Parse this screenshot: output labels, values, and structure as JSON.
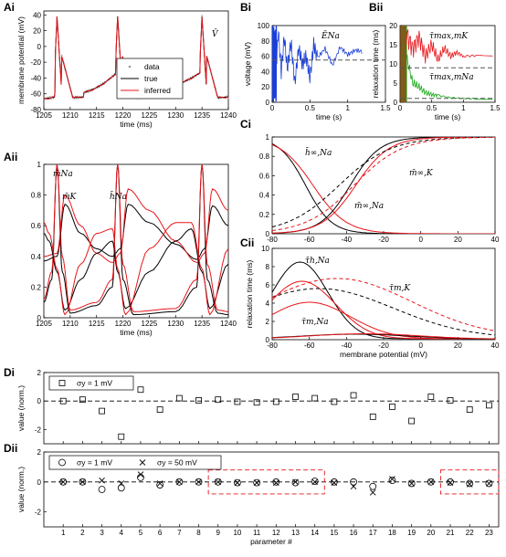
{
  "colors": {
    "true": "#000000",
    "inferred": "#e8141a",
    "data": "#9a9a9a",
    "blue": "#1a3fd8",
    "green": "#18a818"
  },
  "panels": {
    "Ai": {
      "label": "Ai",
      "annotation": "V̄"
    },
    "Aii": {
      "label": "Aii",
      "ann_mNa": "m̄Na",
      "ann_mK": "m̄K",
      "ann_hNa": "h̄Na"
    },
    "Bi": {
      "label": "Bi",
      "annotation": "ĒNa"
    },
    "Bii": {
      "label": "Bii",
      "ann_top": "τ̄max,mK",
      "ann_bot": "τ̄max,mNa"
    },
    "Ci": {
      "label": "Ci",
      "ann_h": "h̄∞,Na",
      "ann_mK": "m̄∞,K",
      "ann_mNa": "m̄∞,Na"
    },
    "Cii": {
      "label": "Cii",
      "ann_h": "τ̄h,Na",
      "ann_mK": "τ̄m,K",
      "ann_mNa": "τ̄m,Na"
    },
    "Di": {
      "label": "Di"
    },
    "Dii": {
      "label": "Dii"
    }
  },
  "chart_data": [
    {
      "id": "Ai",
      "type": "line",
      "xlabel": "time (ms)",
      "ylabel": "membrane potential (mV)",
      "xlim": [
        1205,
        1240
      ],
      "ylim": [
        -80,
        45
      ],
      "xticks": [
        1205,
        1210,
        1215,
        1220,
        1225,
        1230,
        1235,
        1240
      ],
      "yticks": [
        40,
        20,
        0,
        -20,
        -40,
        -60,
        -80
      ],
      "legend": {
        "position": "top-right",
        "entries": [
          "data",
          "true",
          "inferred"
        ]
      },
      "spike_times": [
        1207.5,
        1219.0,
        1235.0
      ],
      "spike_peak": 38,
      "rest": -65,
      "series": [
        {
          "name": "data",
          "style": "dots",
          "x": [
            1205,
            1206,
            1207,
            1207.5,
            1208,
            1209,
            1210,
            1212,
            1214,
            1216,
            1218,
            1219,
            1220,
            1222,
            1225,
            1228,
            1231,
            1233,
            1235,
            1236,
            1238,
            1240
          ],
          "values": [
            -22,
            -15,
            -5,
            38,
            -10,
            -55,
            -68,
            -60,
            -50,
            -38,
            -22,
            38,
            -60,
            -70,
            -64,
            -55,
            -42,
            -25,
            38,
            -55,
            -68,
            -66
          ]
        },
        {
          "name": "true",
          "style": "line",
          "x": [
            1205,
            1206,
            1207,
            1207.5,
            1208,
            1209,
            1210,
            1212,
            1214,
            1216,
            1218,
            1219,
            1220,
            1222,
            1225,
            1228,
            1231,
            1233,
            1235,
            1236,
            1238,
            1240
          ],
          "values": [
            -22,
            -15,
            -5,
            38,
            -10,
            -55,
            -68,
            -60,
            -50,
            -38,
            -22,
            38,
            -60,
            -70,
            -64,
            -55,
            -42,
            -25,
            38,
            -55,
            -68,
            -66
          ]
        },
        {
          "name": "inferred",
          "style": "line",
          "x": [
            1205,
            1206,
            1207,
            1207.5,
            1208,
            1209,
            1210,
            1212,
            1214,
            1216,
            1218,
            1219,
            1220,
            1222,
            1225,
            1228,
            1231,
            1233,
            1235,
            1236,
            1238,
            1240
          ],
          "values": [
            -21,
            -14,
            -4,
            37,
            -11,
            -54,
            -67,
            -59,
            -49,
            -37,
            -21,
            37,
            -59,
            -69,
            -63,
            -54,
            -41,
            -24,
            37,
            -54,
            -67,
            -65
          ]
        }
      ]
    },
    {
      "id": "Aii",
      "type": "line",
      "xlabel": "time (ms)",
      "ylabel": "",
      "xlim": [
        1205,
        1240
      ],
      "ylim": [
        0,
        1
      ],
      "xticks": [
        1205,
        1210,
        1215,
        1220,
        1225,
        1230,
        1235,
        1240
      ],
      "yticks": [
        1,
        0.8,
        0.6,
        0.4,
        0.2,
        0
      ],
      "series": [
        {
          "name": "m_Na true",
          "color": "true",
          "x": [
            1205,
            1206.5,
            1207.5,
            1208.5,
            1210,
            1215,
            1218,
            1219,
            1220,
            1222,
            1230,
            1234,
            1235,
            1236,
            1238,
            1240
          ],
          "values": [
            0.1,
            0.25,
            1.0,
            0.3,
            0.03,
            0.08,
            0.2,
            1.0,
            0.25,
            0.02,
            0.04,
            0.2,
            1.0,
            0.25,
            0.03,
            0.02
          ]
        },
        {
          "name": "m_Na inferred",
          "color": "inferred",
          "x": [
            1205,
            1206.5,
            1207.5,
            1208.5,
            1210,
            1215,
            1218,
            1219,
            1220,
            1222,
            1230,
            1234,
            1235,
            1236,
            1238,
            1240
          ],
          "values": [
            0.12,
            0.3,
            1.0,
            0.4,
            0.05,
            0.1,
            0.25,
            1.0,
            0.35,
            0.04,
            0.06,
            0.25,
            1.0,
            0.35,
            0.05,
            0.04
          ]
        },
        {
          "name": "m_K true",
          "color": "true",
          "x": [
            1205,
            1207.5,
            1209,
            1212,
            1215,
            1218,
            1219.5,
            1221,
            1225,
            1230,
            1234,
            1235.5,
            1237,
            1240
          ],
          "values": [
            0.37,
            0.4,
            0.74,
            0.55,
            0.45,
            0.4,
            0.45,
            0.74,
            0.62,
            0.48,
            0.38,
            0.45,
            0.73,
            0.6
          ]
        },
        {
          "name": "m_K inferred",
          "color": "inferred",
          "x": [
            1205,
            1207.5,
            1209,
            1212,
            1215,
            1218,
            1219.5,
            1221,
            1225,
            1230,
            1234,
            1235.5,
            1237,
            1240
          ],
          "values": [
            0.4,
            0.42,
            0.8,
            0.6,
            0.42,
            0.36,
            0.42,
            0.84,
            0.7,
            0.5,
            0.36,
            0.42,
            0.84,
            0.7
          ]
        },
        {
          "name": "h_Na true",
          "color": "true",
          "x": [
            1205,
            1206,
            1207.5,
            1209,
            1212,
            1215,
            1218,
            1219,
            1220.5,
            1225,
            1230,
            1233,
            1235,
            1236.5,
            1240
          ],
          "values": [
            0.55,
            0.5,
            0.3,
            0.05,
            0.25,
            0.42,
            0.5,
            0.3,
            0.06,
            0.3,
            0.5,
            0.58,
            0.3,
            0.06,
            0.35
          ]
        },
        {
          "name": "h_Na inferred",
          "color": "inferred",
          "x": [
            1205,
            1206,
            1207.5,
            1209,
            1212,
            1215,
            1218,
            1219,
            1220.5,
            1225,
            1230,
            1233,
            1235,
            1236.5,
            1240
          ],
          "values": [
            0.62,
            0.55,
            0.32,
            0.02,
            0.35,
            0.55,
            0.58,
            0.32,
            0.02,
            0.45,
            0.62,
            0.62,
            0.32,
            0.02,
            0.45
          ]
        }
      ]
    },
    {
      "id": "Bi",
      "type": "line",
      "xlabel": "time (s)",
      "ylabel": "voltage (mV)",
      "xlim": [
        0,
        1.5
      ],
      "ylim": [
        0,
        100
      ],
      "xticks": [
        0,
        0.5,
        1,
        1.5
      ],
      "yticks": [
        100,
        80,
        60,
        40,
        20,
        0
      ],
      "true_value": 55,
      "series": [
        {
          "name": "estimate",
          "color": "blue",
          "x": [
            0.0,
            0.05,
            0.08,
            0.12,
            0.16,
            0.2,
            0.25,
            0.3,
            0.35,
            0.4,
            0.45,
            0.5,
            0.55,
            0.6,
            0.7,
            0.8,
            0.9,
            1.0,
            1.1,
            1.2
          ],
          "values": [
            100,
            30,
            95,
            40,
            85,
            45,
            78,
            25,
            70,
            50,
            60,
            32,
            75,
            58,
            70,
            48,
            72,
            62,
            68,
            66
          ]
        }
      ]
    },
    {
      "id": "Bii",
      "type": "line",
      "xlabel": "time (s)",
      "ylabel": "relaxation time (ms)",
      "xlim": [
        0,
        1.5
      ],
      "ylim": [
        0,
        20
      ],
      "xticks": [
        0,
        0.5,
        1,
        1.5
      ],
      "yticks": [
        20,
        15,
        10,
        5,
        0
      ],
      "true_values": [
        9,
        1
      ],
      "series": [
        {
          "name": "τmax,mK estimate",
          "color": "inferred",
          "x": [
            0.1,
            0.2,
            0.3,
            0.4,
            0.5,
            0.6,
            0.7,
            0.8,
            0.9,
            1.0,
            1.2,
            1.5
          ],
          "values": [
            18,
            14,
            17,
            12,
            15,
            11,
            14,
            12,
            13,
            12,
            12.2,
            12.2
          ]
        },
        {
          "name": "τmax,mNa estimate",
          "color": "green",
          "x": [
            0.1,
            0.2,
            0.3,
            0.4,
            0.5,
            0.6,
            0.8,
            1.0,
            1.2,
            1.5
          ],
          "values": [
            12,
            5,
            4,
            2.5,
            2,
            1.8,
            1.2,
            1,
            0.9,
            0.9
          ]
        }
      ]
    },
    {
      "id": "Ci",
      "type": "line",
      "xlabel": "",
      "ylabel": "",
      "xlim": [
        -80,
        40
      ],
      "ylim": [
        0,
        1
      ],
      "xticks": [
        -80,
        -60,
        -40,
        -20,
        0,
        20,
        40
      ],
      "yticks": [
        1,
        0.8,
        0.6,
        0.4,
        0.2,
        0
      ],
      "curves": [
        {
          "kind": "sig",
          "color": "true",
          "dash": false,
          "params": [
            -62,
            -7
          ]
        },
        {
          "kind": "sig",
          "color": "inferred",
          "dash": false,
          "params": [
            -58,
            -9
          ]
        },
        {
          "kind": "sig",
          "color": "true",
          "dash": false,
          "params": [
            -38,
            8
          ]
        },
        {
          "kind": "sig",
          "color": "inferred",
          "dash": false,
          "params": [
            -35,
            9
          ]
        },
        {
          "kind": "sig",
          "color": "true",
          "dash": true,
          "params": [
            -44,
            14
          ]
        },
        {
          "kind": "sig",
          "color": "inferred",
          "dash": true,
          "params": [
            -36,
            13
          ]
        }
      ]
    },
    {
      "id": "Cii",
      "type": "line",
      "xlabel": "membrane potential (mV)",
      "ylabel": "relaxation time (ms)",
      "xlim": [
        -80,
        40
      ],
      "ylim": [
        0,
        10
      ],
      "xticks": [
        -80,
        -60,
        -40,
        -20,
        0,
        20,
        40
      ],
      "yticks": [
        10,
        8,
        6,
        4,
        2,
        0
      ],
      "curves": [
        {
          "kind": "bump",
          "color": "true",
          "dash": false,
          "params": [
            8.4,
            -65,
            15,
            0.1
          ]
        },
        {
          "kind": "bump",
          "color": "inferred",
          "dash": false,
          "params": [
            6.3,
            -64,
            18,
            0.1
          ]
        },
        {
          "kind": "bump",
          "color": "inferred",
          "dash": false,
          "params": [
            4.0,
            -60,
            22,
            0.1
          ]
        },
        {
          "kind": "bump",
          "color": "true",
          "dash": true,
          "params": [
            5.4,
            -55,
            40,
            0.2
          ]
        },
        {
          "kind": "bump",
          "color": "inferred",
          "dash": true,
          "params": [
            6.4,
            -45,
            40,
            0.3
          ]
        },
        {
          "kind": "bump",
          "color": "true",
          "dash": false,
          "params": [
            0.55,
            -35,
            30,
            0.05
          ]
        },
        {
          "kind": "bump",
          "color": "inferred",
          "dash": false,
          "params": [
            0.6,
            -30,
            30,
            0.05
          ]
        }
      ]
    },
    {
      "id": "Di",
      "type": "scatter",
      "xlabel": "",
      "ylabel": "value (norm.)",
      "xlim": [
        0,
        23.5
      ],
      "ylim": [
        -3,
        2
      ],
      "yticks": [
        2,
        0,
        -2
      ],
      "legend": {
        "position": "top-left",
        "entries": [
          "σy = 1 mV"
        ]
      },
      "series": [
        {
          "name": "σy = 1 mV",
          "marker": "square",
          "x": [
            1,
            2,
            3,
            4,
            5,
            6,
            7,
            8,
            9,
            10,
            11,
            12,
            13,
            14,
            15,
            16,
            17,
            18,
            19,
            20,
            21,
            22,
            23
          ],
          "values": [
            0.0,
            0.1,
            -0.7,
            -2.5,
            0.8,
            -0.6,
            0.2,
            0.05,
            0.1,
            -0.05,
            -0.1,
            -0.05,
            0.3,
            0.2,
            -0.05,
            0.4,
            -1.1,
            -0.4,
            -1.4,
            0.3,
            0.05,
            -0.6,
            -0.3
          ]
        }
      ]
    },
    {
      "id": "Dii",
      "type": "scatter",
      "xlabel": "parameter #",
      "ylabel": "value (norm.)",
      "xlim": [
        0,
        23.5
      ],
      "ylim": [
        -3,
        2
      ],
      "xticks": [
        1,
        2,
        3,
        4,
        5,
        6,
        7,
        8,
        9,
        10,
        11,
        12,
        13,
        14,
        15,
        16,
        17,
        18,
        19,
        20,
        21,
        22,
        23
      ],
      "yticks": [
        2,
        0,
        -2
      ],
      "legend": {
        "position": "top-left",
        "entries": [
          "σy = 1 mV",
          "σy = 50 mV"
        ]
      },
      "boxes": [
        [
          8.5,
          14.5
        ],
        [
          20.5,
          23.5
        ]
      ],
      "series": [
        {
          "name": "σy = 1 mV",
          "marker": "circle",
          "x": [
            1,
            2,
            3,
            4,
            5,
            6,
            7,
            8,
            9,
            10,
            11,
            12,
            13,
            14,
            15,
            16,
            17,
            18,
            19,
            20,
            21,
            22,
            23
          ],
          "values": [
            0.0,
            0.0,
            -0.5,
            -0.4,
            0.3,
            -0.2,
            0.0,
            0.0,
            0.0,
            -0.05,
            -0.05,
            0.0,
            -0.05,
            0.05,
            0.0,
            0.0,
            -0.3,
            0.1,
            -0.1,
            0.0,
            0.0,
            -0.1,
            -0.1
          ]
        },
        {
          "name": "σy = 50 mV",
          "marker": "x",
          "x": [
            1,
            2,
            3,
            4,
            5,
            6,
            7,
            8,
            9,
            10,
            11,
            12,
            13,
            14,
            15,
            16,
            17,
            18,
            19,
            20,
            21,
            22,
            23
          ],
          "values": [
            0.0,
            0.0,
            0.1,
            -0.1,
            0.5,
            -0.1,
            0.0,
            0.0,
            0.0,
            -0.05,
            -0.05,
            -0.05,
            0.0,
            0.0,
            -0.05,
            -0.3,
            -0.7,
            0.2,
            -0.1,
            0.0,
            -0.05,
            -0.15,
            -0.1
          ]
        }
      ]
    }
  ]
}
